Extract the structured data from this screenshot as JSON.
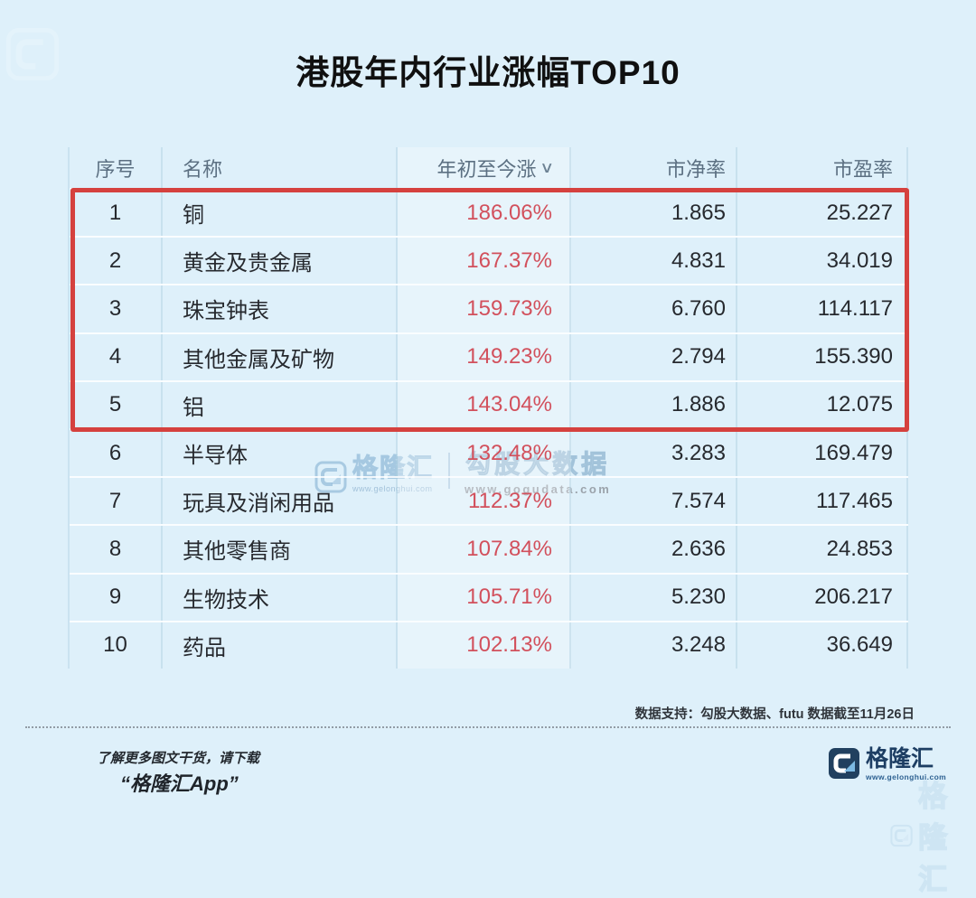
{
  "page": {
    "title": "港股年内行业涨幅TOP10",
    "background_color": "#def0fa"
  },
  "table": {
    "headers": {
      "rank": "序号",
      "name": "名称",
      "ytd": "年初至今涨",
      "pb": "市净率",
      "pe": "市盈率"
    },
    "sort_chevron": "∨",
    "rows": [
      {
        "rank": "1",
        "name": "铜",
        "ytd": "186.06%",
        "pb": "1.865",
        "pe": "25.227"
      },
      {
        "rank": "2",
        "name": "黄金及贵金属",
        "ytd": "167.37%",
        "pb": "4.831",
        "pe": "34.019"
      },
      {
        "rank": "3",
        "name": "珠宝钟表",
        "ytd": "159.73%",
        "pb": "6.760",
        "pe": "114.117"
      },
      {
        "rank": "4",
        "name": "其他金属及矿物",
        "ytd": "149.23%",
        "pb": "2.794",
        "pe": "155.390"
      },
      {
        "rank": "5",
        "name": "铝",
        "ytd": "143.04%",
        "pb": "1.886",
        "pe": "12.075"
      },
      {
        "rank": "6",
        "name": "半导体",
        "ytd": "132.48%",
        "pb": "3.283",
        "pe": "169.479"
      },
      {
        "rank": "7",
        "name": "玩具及消闲用品",
        "ytd": "112.37%",
        "pb": "7.574",
        "pe": "117.465"
      },
      {
        "rank": "8",
        "name": "其他零售商",
        "ytd": "107.84%",
        "pb": "2.636",
        "pe": "24.853"
      },
      {
        "rank": "9",
        "name": "生物技术",
        "ytd": "105.71%",
        "pb": "5.230",
        "pe": "206.217"
      },
      {
        "rank": "10",
        "name": "药品",
        "ytd": "102.13%",
        "pb": "3.248",
        "pe": "36.649"
      }
    ],
    "highlight": {
      "rows": "1-5",
      "border_color": "#d5413e"
    }
  },
  "watermark_center": {
    "brand": "格隆汇",
    "brand_url": "www.gelonghui.com",
    "product": "勾股大数据",
    "product_url": "www.gogudata.com"
  },
  "footer": {
    "source_note": "数据支持：勾股大数据、futu 数据截至11月26日",
    "promo_line1": "了解更多图文干货，请下载",
    "promo_line2": "“格隆汇App”",
    "brand": "格隆汇",
    "brand_url": "www.gelonghui.com"
  },
  "colors": {
    "ytd_red": "#d2505c",
    "highlight_border_red": "#d5413e",
    "brand_navy": "#1d3e63",
    "header_gray_blue": "#5c7082"
  },
  "chart_data": {
    "type": "table",
    "title": "港股年内行业涨幅TOP10",
    "columns": [
      "序号",
      "名称",
      "年初至今涨",
      "市净率",
      "市盈率"
    ],
    "rows": [
      [
        "1",
        "铜",
        "186.06%",
        "1.865",
        "25.227"
      ],
      [
        "2",
        "黄金及贵金属",
        "167.37%",
        "4.831",
        "34.019"
      ],
      [
        "3",
        "珠宝钟表",
        "159.73%",
        "6.760",
        "114.117"
      ],
      [
        "4",
        "其他金属及矿物",
        "149.23%",
        "2.794",
        "155.390"
      ],
      [
        "5",
        "铝",
        "143.04%",
        "1.886",
        "12.075"
      ],
      [
        "6",
        "半导体",
        "132.48%",
        "3.283",
        "169.479"
      ],
      [
        "7",
        "玩具及消闲用品",
        "112.37%",
        "7.574",
        "117.465"
      ],
      [
        "8",
        "其他零售商",
        "107.84%",
        "2.636",
        "24.853"
      ],
      [
        "9",
        "生物技术",
        "105.71%",
        "5.230",
        "206.217"
      ],
      [
        "10",
        "药品",
        "102.13%",
        "3.248",
        "36.649"
      ]
    ],
    "sorted_by": "年初至今涨",
    "sort_direction": "desc",
    "highlighted_rows": [
      1,
      2,
      3,
      4,
      5
    ],
    "source": "数据支持：勾股大数据、futu 数据截至11月26日"
  }
}
